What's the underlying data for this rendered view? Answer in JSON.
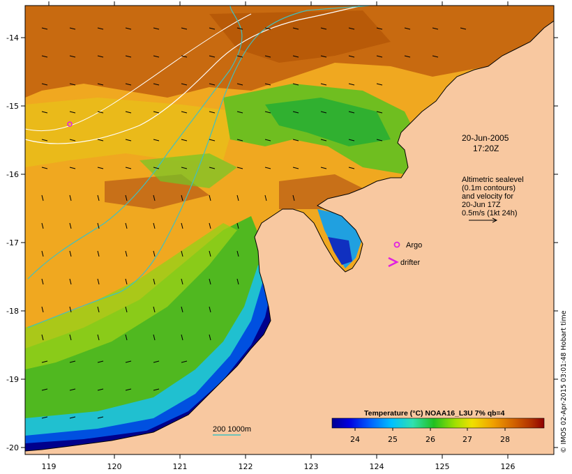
{
  "map": {
    "y_ticks": [
      "-14",
      "-15",
      "-16",
      "-17",
      "-18",
      "-19",
      "-20"
    ],
    "x_ticks": [
      "119",
      "120",
      "121",
      "122",
      "123",
      "124",
      "125",
      "126"
    ],
    "date_line1": "20-Jun-2005",
    "date_line2": "17:20Z",
    "altimetry_lines": [
      "Altimetric sealevel",
      "(0.1m contours)",
      "and velocity for",
      "20-Jun 17Z",
      "0.5m/s (1kt 24h)"
    ],
    "argo_label": "Argo",
    "drifter_label": "drifter",
    "depth_label": "200  1000m",
    "colorbar_title": "Temperature (°C) NOAA16_L3U 7% qb=4",
    "colorbar_ticks": [
      "24",
      "25",
      "26",
      "27",
      "28"
    ],
    "credit": "© IMOS 02-Apr-2015 03:01:48 Hobart time"
  },
  "colors": {
    "land": "#f8c8a0",
    "argo": "#e020e0",
    "drifter": "#e020e0",
    "contour_white": "#ffffff",
    "contour_cyan": "#40c0c0"
  }
}
